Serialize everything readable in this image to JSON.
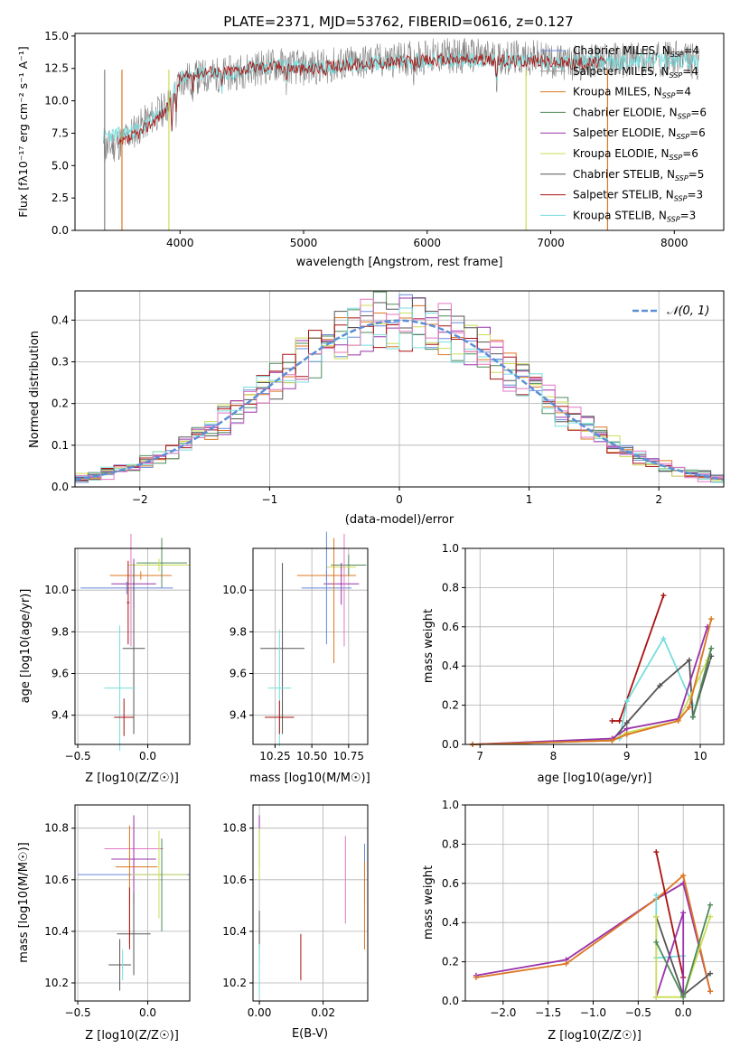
{
  "figure_title": "PLATE=2371, MJD=53762, FIBERID=0616, z=0.127",
  "colors": {
    "Chabrier MILES": "#6688dd",
    "Salpeter MILES": "#9a9a9a",
    "Kroupa MILES": "#dd7722",
    "Chabrier ELODIE": "#4e8a5a",
    "Salpeter ELODIE": "#9933aa",
    "Kroupa ELODIE": "#ccdd55",
    "Chabrier STELIB": "#555555",
    "Salpeter STELIB": "#aa1111",
    "Kroupa STELIB": "#77dddd",
    "Pink": "#e377c2",
    "Normal": "#5b8fd6"
  },
  "chart_data": [
    {
      "id": "spectrum",
      "type": "line",
      "title": "PLATE=2371, MJD=53762, FIBERID=0616, z=0.127",
      "xlabel": "wavelength [Angstrom, rest frame]",
      "ylabel": "Flux [fλ10⁻¹⁷ erg cm⁻² s⁻¹ A⁻¹]",
      "xlim": [
        3150,
        8400
      ],
      "ylim": [
        0,
        15.2
      ],
      "xticks": [
        "4000",
        "5000",
        "6000",
        "7000",
        "8000"
      ],
      "yticks": [
        "0.0",
        "2.5",
        "5.0",
        "7.5",
        "10.0",
        "12.5",
        "15.0"
      ],
      "legend": "top-right",
      "legend_entries": [
        "Chabrier MILES, N_SSP=4",
        "Salpeter MILES, N_SSP=4",
        "Kroupa MILES, N_SSP=4",
        "Chabrier ELODIE, N_SSP=6",
        "Salpeter ELODIE, N_SSP=6",
        "Kroupa ELODIE, N_SSP=6",
        "Chabrier STELIB, N_SSP=5",
        "Salpeter STELIB, N_SSP=3",
        "Kroupa STELIB, N_SSP=3"
      ],
      "series": [
        {
          "name": "Chabrier STELIB, N_SSP=5",
          "x": [
            3380,
            3500,
            3700,
            3900,
            4000,
            4200,
            4400,
            4600,
            4800,
            5000,
            5200,
            5500,
            5800,
            6000,
            6300,
            6600,
            6900,
            7100,
            7300,
            7500,
            7700,
            8000,
            8200
          ],
          "y": [
            6.3,
            6.7,
            8.2,
            9.6,
            11.6,
            11.9,
            12.1,
            12.5,
            12.8,
            12.5,
            12.7,
            13.0,
            13.2,
            13.4,
            13.5,
            13.3,
            13.3,
            12.9,
            13.0,
            13.2,
            13.1,
            13.3,
            13.0
          ]
        },
        {
          "name": "Kroupa STELIB, N_SSP=3",
          "x": [
            3380,
            3500,
            3700,
            3900,
            4000,
            4200,
            4400,
            4600,
            4800,
            5000,
            5200,
            5500,
            5800,
            6000,
            6300,
            6600,
            6900,
            7100,
            7300,
            7500,
            7700,
            8000,
            8200
          ],
          "y": [
            7.3,
            7.4,
            7.9,
            9.5,
            11.8,
            12.2,
            12.2,
            12.6,
            12.7,
            12.6,
            12.6,
            12.9,
            13.0,
            13.1,
            13.2,
            13.1,
            13.1,
            12.9,
            13.0,
            13.0,
            13.1,
            13.1,
            13.0
          ]
        },
        {
          "name": "Salpeter STELIB, N_SSP=3",
          "x": [
            3500,
            3700,
            3900,
            4000,
            4200,
            4400,
            4600,
            4800,
            5000,
            5200,
            5500,
            5800,
            6000,
            6300,
            6600,
            6900,
            7100,
            7300,
            7450
          ],
          "y": [
            6.5,
            7.7,
            9.4,
            11.7,
            12.3,
            12.3,
            12.6,
            12.7,
            12.4,
            12.6,
            12.9,
            13.0,
            13.1,
            13.2,
            13.1,
            13.1,
            12.9,
            12.9,
            13.0
          ]
        }
      ]
    },
    {
      "id": "residuals",
      "type": "line",
      "xlabel": "(data-model)/error",
      "ylabel": "Normed distribution",
      "xlim": [
        -2.5,
        2.5
      ],
      "ylim": [
        0,
        0.47
      ],
      "xticks": [
        "−2",
        "−1",
        "0",
        "1",
        "2"
      ],
      "yticks": [
        "0.0",
        "0.1",
        "0.2",
        "0.3",
        "0.4"
      ],
      "legend": "top-right",
      "legend_entry": "N(0, 1)",
      "series": [
        {
          "name": "N(0, 1)",
          "x": [
            -2.5,
            -2.0,
            -1.5,
            -1.0,
            -0.5,
            0.0,
            0.5,
            1.0,
            1.5,
            2.0,
            2.5
          ],
          "y": [
            0.018,
            0.054,
            0.13,
            0.242,
            0.352,
            0.399,
            0.352,
            0.242,
            0.13,
            0.054,
            0.018
          ]
        }
      ]
    },
    {
      "id": "age-vs-Z",
      "type": "scatter",
      "xlabel": "Z [log10(Z/Z☉)]",
      "ylabel": "age  [log10(age/yr)]",
      "xlim": [
        -0.52,
        0.3
      ],
      "ylim": [
        9.26,
        10.2
      ],
      "xticks": [
        "−0.5",
        "0.0"
      ],
      "yticks": [
        "9.4",
        "9.6",
        "9.8",
        "10.0"
      ]
    },
    {
      "id": "age-vs-mass",
      "type": "scatter",
      "xlabel": "mass [log10(M/M☉)]",
      "xlim": [
        10.1,
        10.88
      ],
      "ylim": [
        9.26,
        10.2
      ],
      "xticks": [
        "10.25",
        "10.50",
        "10.75"
      ],
      "yticks": [
        "9.4",
        "9.6",
        "9.8",
        "10.0"
      ]
    },
    {
      "id": "mass-weight-vs-age",
      "type": "line",
      "xlabel": "age  [log10(age/yr)]",
      "ylabel": "mass weight",
      "xlim": [
        6.8,
        10.32
      ],
      "ylim": [
        0,
        1.0
      ],
      "xticks": [
        "7",
        "8",
        "9",
        "10"
      ],
      "yticks": [
        "0.0",
        "0.2",
        "0.4",
        "0.6",
        "0.8",
        "1.0"
      ]
    },
    {
      "id": "mass-vs-Z",
      "type": "scatter",
      "xlabel": "Z [log10(Z/Z☉)]",
      "ylabel": "mass [log10(M/M☉)]",
      "xlim": [
        -0.52,
        0.3
      ],
      "ylim": [
        10.13,
        10.89
      ],
      "xticks": [
        "−0.5",
        "0.0"
      ],
      "yticks": [
        "10.2",
        "10.4",
        "10.6",
        "10.8"
      ]
    },
    {
      "id": "mass-vs-ebv",
      "type": "scatter",
      "xlabel": "E(B-V)",
      "xlim": [
        -0.002,
        0.034
      ],
      "ylim": [
        10.13,
        10.89
      ],
      "xticks": [
        "0.00",
        "0.02"
      ],
      "yticks": [
        "10.2",
        "10.4",
        "10.6",
        "10.8"
      ]
    },
    {
      "id": "mass-weight-vs-Z",
      "type": "line",
      "xlabel": "Z [log10(Z/Z☉)]",
      "ylabel": "mass weight",
      "xlim": [
        -2.42,
        0.45
      ],
      "ylim": [
        0,
        1.0
      ],
      "xticks": [
        "−2.0",
        "−1.5",
        "−1.0",
        "−0.5",
        "0.0"
      ],
      "yticks": [
        "0.0",
        "0.2",
        "0.4",
        "0.6",
        "0.8",
        "1.0"
      ]
    }
  ]
}
